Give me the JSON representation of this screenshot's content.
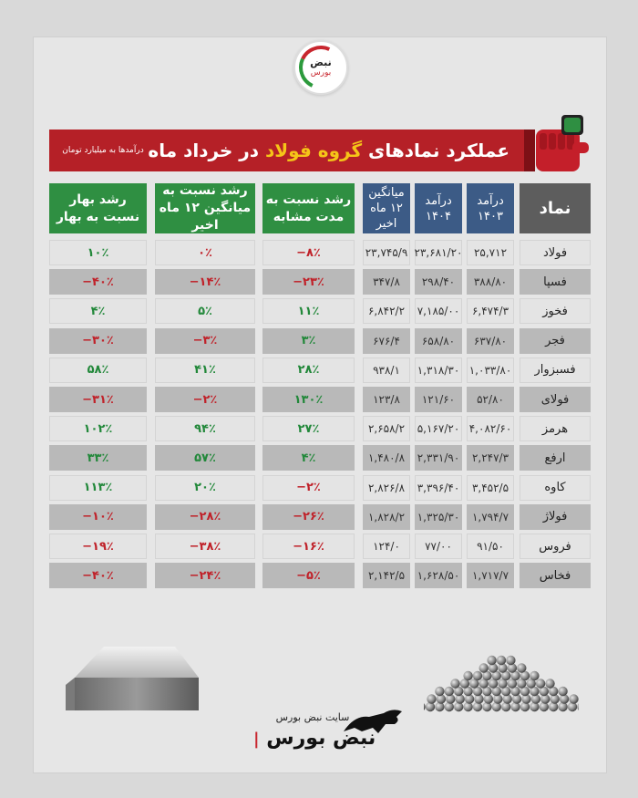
{
  "logo": {
    "line1": "نبض",
    "line2": "بورس"
  },
  "banner": {
    "title_prefix": "عملکرد نمادهای ",
    "title_highlight": "گروه فولاد",
    "title_suffix": " در خرداد ماه",
    "note": "درآمدها به میلیارد تومان"
  },
  "headers": {
    "symbol": "نماد",
    "rev1403": "درآمد ۱۴۰۳",
    "rev1404": "درآمد ۱۴۰۴",
    "avg12": "میانگین ۱۲ ماه اخیر",
    "growth_same": "رشد نسبت به مدت مشابه",
    "growth_avg": "رشد نسبت به میانگین ۱۲ ماه اخیر",
    "growth_spring": "رشد بهار نسبت به بهار"
  },
  "rows": [
    {
      "symbol": "فولاد",
      "rev1403": "۲۵,۷۱۲",
      "rev1404": "۲۳,۶۸۱/۲۰",
      "avg12": "۲۳,۷۴۵/۹",
      "growth_same": "−۸٪",
      "growth_avg": "۰٪",
      "growth_spring": "۱۰٪",
      "s_same": "neg",
      "s_avg": "neg",
      "s_spring": "pos"
    },
    {
      "symbol": "فسپا",
      "rev1403": "۳۸۸/۸۰",
      "rev1404": "۲۹۸/۴۰",
      "avg12": "۳۴۷/۸",
      "growth_same": "−۲۳٪",
      "growth_avg": "−۱۴٪",
      "growth_spring": "−۴۰٪",
      "s_same": "neg",
      "s_avg": "neg",
      "s_spring": "neg"
    },
    {
      "symbol": "فخوز",
      "rev1403": "۶,۴۷۴/۳",
      "rev1404": "۷,۱۸۵/۰۰",
      "avg12": "۶,۸۴۲/۲",
      "growth_same": "۱۱٪",
      "growth_avg": "۵٪",
      "growth_spring": "۴٪",
      "s_same": "pos",
      "s_avg": "pos",
      "s_spring": "pos"
    },
    {
      "symbol": "فجر",
      "rev1403": "۶۳۷/۸۰",
      "rev1404": "۶۵۸/۸۰",
      "avg12": "۶۷۶/۴",
      "growth_same": "۳٪",
      "growth_avg": "−۳٪",
      "growth_spring": "−۳۰٪",
      "s_same": "pos",
      "s_avg": "neg",
      "s_spring": "neg"
    },
    {
      "symbol": "فسبزوار",
      "rev1403": "۱,۰۳۳/۸۰",
      "rev1404": "۱,۳۱۸/۳۰",
      "avg12": "۹۳۸/۱",
      "growth_same": "۲۸٪",
      "growth_avg": "۴۱٪",
      "growth_spring": "۵۸٪",
      "s_same": "pos",
      "s_avg": "pos",
      "s_spring": "pos"
    },
    {
      "symbol": "فولای",
      "rev1403": "۵۲/۸۰",
      "rev1404": "۱۲۱/۶۰",
      "avg12": "۱۲۳/۸",
      "growth_same": "۱۳۰٪",
      "growth_avg": "−۲٪",
      "growth_spring": "−۳۱٪",
      "s_same": "pos",
      "s_avg": "neg",
      "s_spring": "neg"
    },
    {
      "symbol": "هرمز",
      "rev1403": "۴,۰۸۲/۶۰",
      "rev1404": "۵,۱۶۷/۲۰",
      "avg12": "۲,۶۵۸/۲",
      "growth_same": "۲۷٪",
      "growth_avg": "۹۴٪",
      "growth_spring": "۱۰۲٪",
      "s_same": "pos",
      "s_avg": "pos",
      "s_spring": "pos"
    },
    {
      "symbol": "ارفع",
      "rev1403": "۲,۲۴۷/۳",
      "rev1404": "۲,۳۳۱/۹۰",
      "avg12": "۱,۴۸۰/۸",
      "growth_same": "۴٪",
      "growth_avg": "۵۷٪",
      "growth_spring": "۳۳٪",
      "s_same": "pos",
      "s_avg": "pos",
      "s_spring": "pos"
    },
    {
      "symbol": "کاوه",
      "rev1403": "۳,۴۵۲/۵",
      "rev1404": "۳,۳۹۶/۴۰",
      "avg12": "۲,۸۲۶/۸",
      "growth_same": "−۲٪",
      "growth_avg": "۲۰٪",
      "growth_spring": "۱۱۳٪",
      "s_same": "neg",
      "s_avg": "pos",
      "s_spring": "pos"
    },
    {
      "symbol": "فولاژ",
      "rev1403": "۱,۷۹۴/۷",
      "rev1404": "۱,۳۲۵/۳۰",
      "avg12": "۱,۸۲۸/۲",
      "growth_same": "−۲۶٪",
      "growth_avg": "−۲۸٪",
      "growth_spring": "−۱۰٪",
      "s_same": "neg",
      "s_avg": "neg",
      "s_spring": "neg"
    },
    {
      "symbol": "فروس",
      "rev1403": "۹۱/۵۰",
      "rev1404": "۷۷/۰۰",
      "avg12": "۱۲۴/۰",
      "growth_same": "−۱۶٪",
      "growth_avg": "−۳۸٪",
      "growth_spring": "−۱۹٪",
      "s_same": "neg",
      "s_avg": "neg",
      "s_spring": "neg"
    },
    {
      "symbol": "فخاس",
      "rev1403": "۱,۷۱۷/۷",
      "rev1404": "۱,۶۲۸/۵۰",
      "avg12": "۲,۱۴۲/۵",
      "growth_same": "−۵٪",
      "growth_avg": "−۲۴٪",
      "growth_spring": "−۴۰٪",
      "s_same": "neg",
      "s_avg": "neg",
      "s_spring": "neg"
    }
  ],
  "footer": {
    "site": "سایت نبض بورس",
    "logo_text": "نبض بورس"
  },
  "colors": {
    "red": "#b52027",
    "green": "#2f8f42",
    "blue": "#3c5b86",
    "pos": "#22883a",
    "neg": "#c0222a"
  }
}
